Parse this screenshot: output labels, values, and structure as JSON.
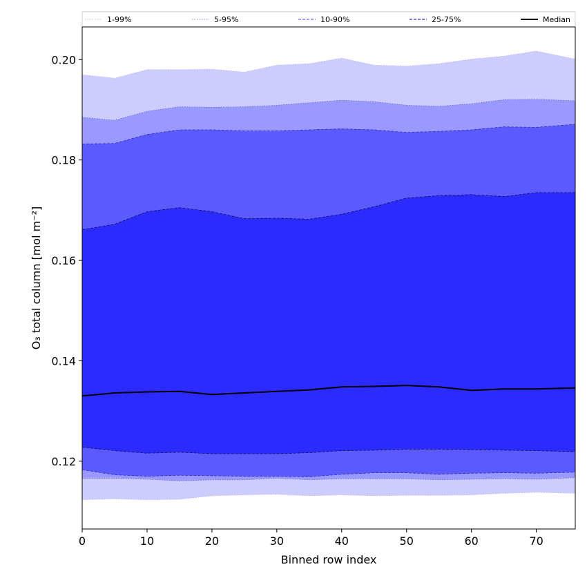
{
  "chart_data": {
    "type": "area",
    "xlabel": "Binned row index",
    "ylabel": "O₃ total column [mol m⁻²]",
    "xlim": [
      0,
      76
    ],
    "ylim": [
      0.1065,
      0.2065
    ],
    "x_ticks": [
      0,
      10,
      20,
      30,
      40,
      50,
      60,
      70
    ],
    "y_ticks": [
      0.12,
      0.14,
      0.16,
      0.18,
      0.2
    ],
    "x_tick_labels": [
      "0",
      "10",
      "20",
      "30",
      "40",
      "50",
      "60",
      "70"
    ],
    "y_tick_labels": [
      "0.12",
      "0.14",
      "0.16",
      "0.18",
      "0.20"
    ],
    "grid": false,
    "legend_placement": "top, horizontal strip above plot",
    "x": [
      0,
      5,
      10,
      15,
      20,
      25,
      30,
      35,
      40,
      45,
      50,
      55,
      60,
      65,
      70,
      76
    ],
    "bands": [
      {
        "name": "1-99%",
        "fill": "#ccccff",
        "edge": "#bbbbee",
        "lower": [
          0.1123,
          0.1125,
          0.1123,
          0.1124,
          0.1131,
          0.1133,
          0.1134,
          0.1131,
          0.1133,
          0.1131,
          0.1132,
          0.1132,
          0.1133,
          0.1136,
          0.1138,
          0.1136
        ],
        "upper": [
          0.197,
          0.1963,
          0.198,
          0.198,
          0.1981,
          0.1975,
          0.1989,
          0.1992,
          0.2003,
          0.1989,
          0.1987,
          0.1992,
          0.2001,
          0.2007,
          0.2017,
          0.2001
        ]
      },
      {
        "name": "5-95%",
        "fill": "#9999ff",
        "edge": "#6666cc",
        "lower": [
          0.1166,
          0.1166,
          0.1164,
          0.1161,
          0.1163,
          0.1163,
          0.1166,
          0.1163,
          0.1165,
          0.1165,
          0.1165,
          0.1163,
          0.1164,
          0.1165,
          0.1164,
          0.1167
        ],
        "upper": [
          0.1885,
          0.1879,
          0.1897,
          0.1906,
          0.1905,
          0.1906,
          0.1909,
          0.1914,
          0.1919,
          0.1916,
          0.1909,
          0.1907,
          0.1912,
          0.192,
          0.1921,
          0.1918
        ]
      },
      {
        "name": "10-90%",
        "fill": "#5a5aff",
        "edge": "#3333aa",
        "lower": [
          0.1183,
          0.1173,
          0.117,
          0.1172,
          0.1171,
          0.117,
          0.117,
          0.1169,
          0.1174,
          0.1177,
          0.1177,
          0.1174,
          0.1176,
          0.1177,
          0.1176,
          0.1178
        ],
        "upper": [
          0.1832,
          0.1833,
          0.1851,
          0.186,
          0.186,
          0.1858,
          0.1858,
          0.186,
          0.1862,
          0.186,
          0.1855,
          0.1857,
          0.186,
          0.1866,
          0.1865,
          0.1871
        ]
      },
      {
        "name": "25-75%",
        "fill": "#2b2bff",
        "edge": "#111155",
        "lower": [
          0.1228,
          0.1221,
          0.1216,
          0.1218,
          0.1215,
          0.1215,
          0.1215,
          0.1217,
          0.1221,
          0.1222,
          0.1224,
          0.1224,
          0.1223,
          0.1222,
          0.1221,
          0.1219
        ],
        "upper": [
          0.1661,
          0.1672,
          0.1697,
          0.1705,
          0.1697,
          0.1683,
          0.1684,
          0.1682,
          0.1692,
          0.1707,
          0.1724,
          0.1729,
          0.1731,
          0.1727,
          0.1735,
          0.1735
        ]
      }
    ],
    "median": {
      "name": "Median",
      "color": "#000000",
      "values": [
        0.133,
        0.1336,
        0.1338,
        0.1339,
        0.1333,
        0.1336,
        0.1339,
        0.1342,
        0.1348,
        0.1349,
        0.1351,
        0.1348,
        0.1341,
        0.1344,
        0.1344,
        0.1346
      ]
    },
    "legend": [
      {
        "label": "1-99%",
        "color": "#ccccff",
        "style": "dotted"
      },
      {
        "label": "5-95%",
        "color": "#9999ff",
        "style": "dotted"
      },
      {
        "label": "10-90%",
        "color": "#6666ee",
        "style": "dashed"
      },
      {
        "label": "25-75%",
        "color": "#3333cc",
        "style": "dashed"
      },
      {
        "label": "Median",
        "color": "#000000",
        "style": "solid"
      }
    ]
  }
}
